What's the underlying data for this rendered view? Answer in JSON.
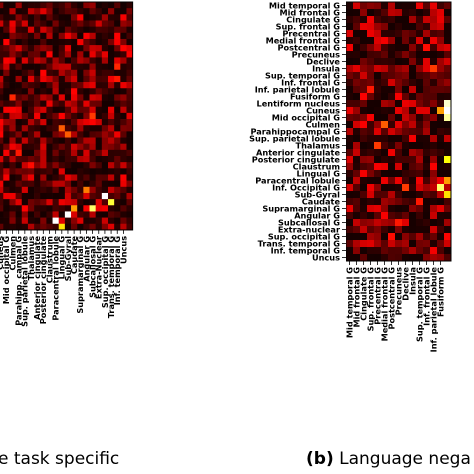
{
  "panels": [
    {
      "caption": "e task specific",
      "x_labels": [
        "Lentiform nucleus",
        "Cuneus",
        "Mid occipital G",
        "Culmen",
        "Parahipp. campal G",
        "Sup. parietal lobule",
        "Thalamus",
        "Anterior cingulate",
        "Posterior cingulate",
        "Claustrum",
        "Paracentral lobule",
        "Lingual G",
        "Sub-Gyral",
        "Caudate",
        "Supramarginal G",
        "Angular G",
        "Subcallosal G",
        "Extra-Nuclear",
        "Sup. occipital G",
        "Trans. temporal G",
        "Inf. temporal G",
        "Uncus"
      ],
      "x_labels_clipped_left": [
        "Fusiform G",
        "Inf. parietal lobule",
        "Inf. frontal G",
        "Sup. temporal G",
        "Insula",
        "Declive"
      ]
    },
    {
      "caption_tag": "(b)",
      "caption": "Language nega",
      "y_labels": [
        "Mid temporal G",
        "Mid frontal G",
        "Cingulate G",
        "Sup. frontal G",
        "Precentral G",
        "Medial frontal G",
        "Postcentral G",
        "Precuneus",
        "Declive",
        "Insula",
        "Sup. temporal G",
        "Inf. frontal G",
        "Inf. parietal lobule",
        "Fusiform G",
        "Lentiform nucleus",
        "Cuneus",
        "Mid occipital G",
        "Culmen",
        "Parahippocampal G",
        "Sup. parietal lobule",
        "Thalamus",
        "Anterior cingulate",
        "Posterior cingulate",
        "Claustrum",
        "Lingual G",
        "Paracentral lobule",
        "Inf. Occipital G",
        "Sub-Gyral",
        "Caudate",
        "Supramarginal G",
        "Angular G",
        "Subcallosal G",
        "Extra-nuclear",
        "Sup. occipital G",
        "Trans. temporal G",
        "Inf. temporal G",
        "Uncus"
      ],
      "x_labels": [
        "Mid temporal G",
        "Mid frontal G",
        "Cingulate G",
        "Sup. frontal G",
        "Precentral G",
        "Medial frontal G",
        "Postcentral G",
        "Precuneus",
        "Declive",
        "Insula",
        "Sup. temporal G",
        "Inf. frontal G",
        "Inf. parietal lobule",
        "Fusiform G"
      ]
    }
  ],
  "chart_data": [
    {
      "type": "heatmap",
      "colormap": "hot",
      "value_range": [
        0,
        1
      ],
      "n_rows": 37,
      "visible_cols": 29,
      "hot_cells": [
        [
          31,
          24,
          1.0
        ],
        [
          33,
          22,
          0.85
        ],
        [
          32,
          25,
          0.8
        ],
        [
          35,
          16,
          1.0
        ],
        [
          34,
          18,
          1.0
        ],
        [
          36,
          17,
          0.7
        ],
        [
          33,
          19,
          0.6
        ],
        [
          30,
          21,
          0.55
        ],
        [
          20,
          17,
          0.5
        ],
        [
          21,
          18,
          0.5
        ],
        [
          14,
          2,
          0.45
        ],
        [
          18,
          22,
          0.45
        ],
        [
          10,
          26,
          0.42
        ],
        [
          15,
          9,
          0.42
        ],
        [
          24,
          10,
          0.4
        ],
        [
          12,
          26,
          0.4
        ],
        [
          16,
          4,
          0.38
        ],
        [
          26,
          12,
          0.38
        ],
        [
          28,
          8,
          0.35
        ],
        [
          6,
          20,
          0.35
        ]
      ]
    },
    {
      "type": "heatmap",
      "colormap": "hot",
      "value_range": [
        0,
        1
      ],
      "n_rows": 37,
      "visible_cols": 15,
      "hot_cells": [
        [
          14,
          14,
          0.95
        ],
        [
          15,
          14,
          1.0
        ],
        [
          16,
          14,
          0.9
        ],
        [
          15,
          13,
          0.6
        ],
        [
          22,
          14,
          0.75
        ],
        [
          25,
          14,
          0.6
        ],
        [
          26,
          13,
          0.85
        ],
        [
          27,
          14,
          0.7
        ],
        [
          17,
          5,
          0.5
        ],
        [
          20,
          4,
          0.45
        ],
        [
          26,
          8,
          0.45
        ],
        [
          9,
          12,
          0.45
        ],
        [
          12,
          3,
          0.4
        ],
        [
          31,
          7,
          0.4
        ],
        [
          28,
          10,
          0.4
        ],
        [
          6,
          11,
          0.38
        ],
        [
          33,
          6,
          0.38
        ],
        [
          24,
          2,
          0.35
        ],
        [
          19,
          9,
          0.35
        ],
        [
          35,
          12,
          0.35
        ]
      ]
    }
  ]
}
